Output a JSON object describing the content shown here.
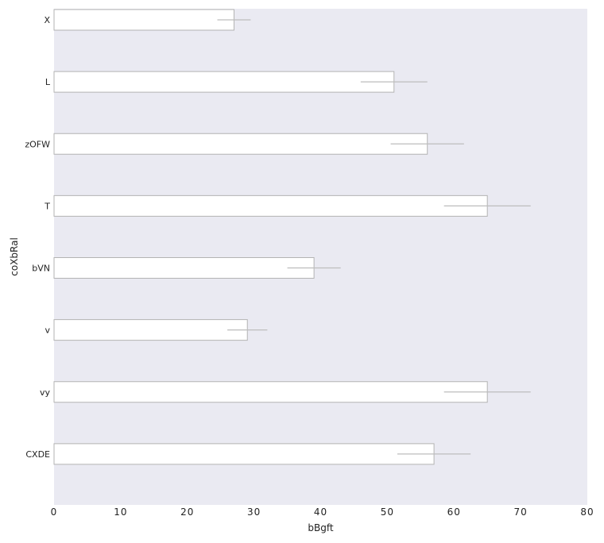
{
  "chart_data": {
    "type": "bar",
    "orientation": "horizontal",
    "categories": [
      "X",
      "L",
      "zOFW",
      "T",
      "bVN",
      "v",
      "vy",
      "CXDE"
    ],
    "values": [
      27,
      51,
      56,
      65,
      39,
      29,
      65,
      57
    ],
    "error": [
      [
        24.5,
        29.5
      ],
      [
        46,
        56
      ],
      [
        50.5,
        61.5
      ],
      [
        58.5,
        71.5
      ],
      [
        35,
        43
      ],
      [
        26,
        32
      ],
      [
        58.5,
        71.5
      ],
      [
        51.5,
        62.5
      ]
    ],
    "xlabel": "bBgft",
    "ylabel": "coXbRal",
    "xlim": [
      0,
      80
    ],
    "xticks": [
      0,
      10,
      20,
      30,
      40,
      50,
      60,
      70,
      80
    ],
    "grid": false,
    "legend": "none",
    "colors": {
      "background": "#eaeaf2",
      "bar_fill": "#ffffff",
      "bar_edge": "#b3b3b3",
      "error_bar": "#bdbdbd",
      "text": "#222222"
    }
  }
}
